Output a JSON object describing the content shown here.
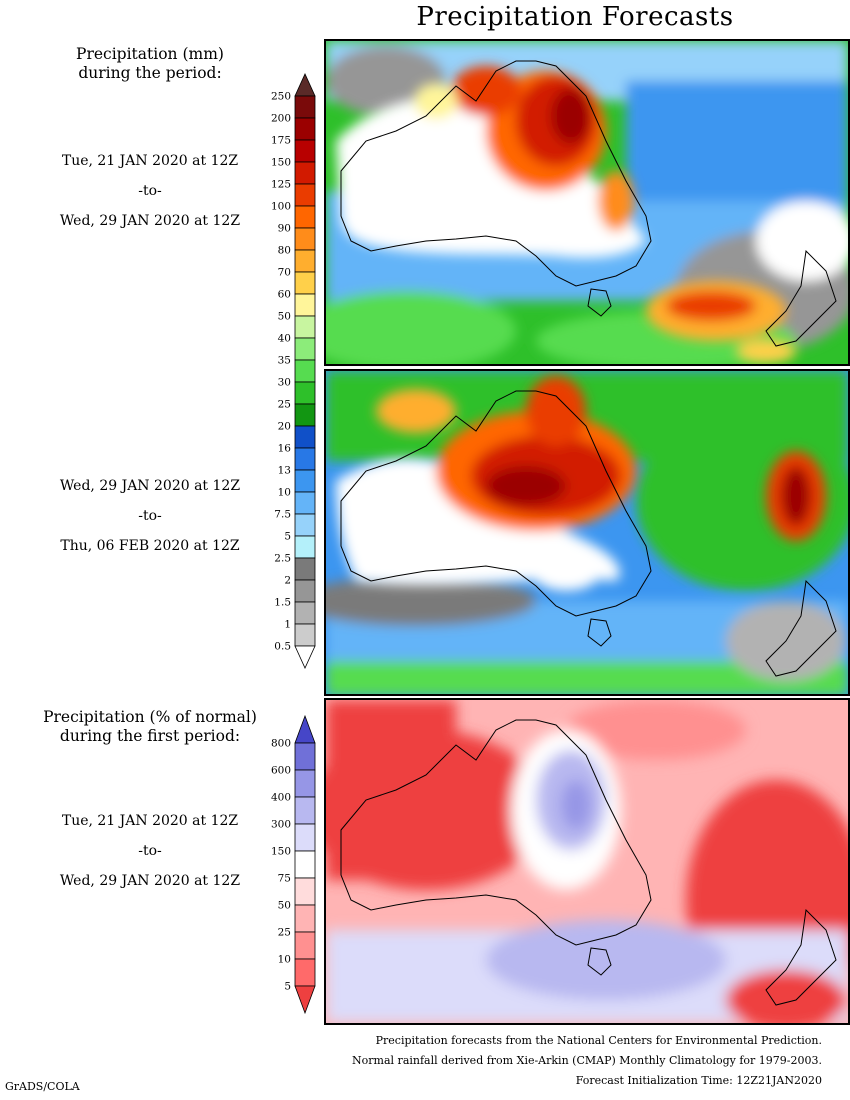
{
  "title": "Precipitation Forecasts",
  "period_label": [
    "Precipitation (mm)",
    "during the period:"
  ],
  "anomaly_label": [
    "Precipitation (% of normal)",
    "during the first period:"
  ],
  "periods": [
    {
      "start": "Tue, 21 JAN 2020 at 12Z",
      "sep": "-to-",
      "end": "Wed, 29 JAN 2020 at 12Z"
    },
    {
      "start": "Wed, 29 JAN 2020 at 12Z",
      "sep": "-to-",
      "end": "Thu, 06 FEB 2020 at 12Z"
    },
    {
      "start": "Tue, 21 JAN 2020 at 12Z",
      "sep": "-to-",
      "end": "Wed, 29 JAN 2020 at 12Z"
    }
  ],
  "precip_colorbar": {
    "labels": [
      "250",
      "200",
      "175",
      "150",
      "125",
      "100",
      "90",
      "80",
      "70",
      "60",
      "50",
      "40",
      "35",
      "30",
      "25",
      "20",
      "16",
      "13",
      "10",
      "7.5",
      "5",
      "2.5",
      "2",
      "1.5",
      "1",
      "0.5"
    ],
    "colors": [
      "#5a2a28",
      "#7a0a0a",
      "#9b0000",
      "#b80000",
      "#d21a00",
      "#ea3c00",
      "#ff6600",
      "#ff8c1a",
      "#ffae2e",
      "#ffd04a",
      "#fff59a",
      "#c8f5a0",
      "#8cec7a",
      "#56dc50",
      "#2ec02a",
      "#129612",
      "#1050c8",
      "#2878e6",
      "#3c96f0",
      "#64b4f8",
      "#96d2fa",
      "#b4f0fa",
      "#7a7a7a",
      "#969696",
      "#b2b2b2",
      "#cccccc",
      "#ffffff"
    ]
  },
  "anomaly_colorbar": {
    "labels": [
      "800",
      "600",
      "400",
      "300",
      "150",
      "75",
      "50",
      "25",
      "10",
      "5"
    ],
    "colors": [
      "#4646c8",
      "#7070d8",
      "#9696e6",
      "#b8b8f0",
      "#dcdcfa",
      "#ffffff",
      "#ffdcdc",
      "#ffb4b4",
      "#ff9090",
      "#ff6a6a",
      "#ee4040"
    ]
  },
  "footer": [
    "Precipitation forecasts from the National Centers for Environmental Prediction.",
    "Normal rainfall derived from Xie-Arkin (CMAP) Monthly Climatology for 1979-2003.",
    "Forecast Initialization Time: 12Z21JAN2020"
  ],
  "credit": "GrADS/COLA"
}
